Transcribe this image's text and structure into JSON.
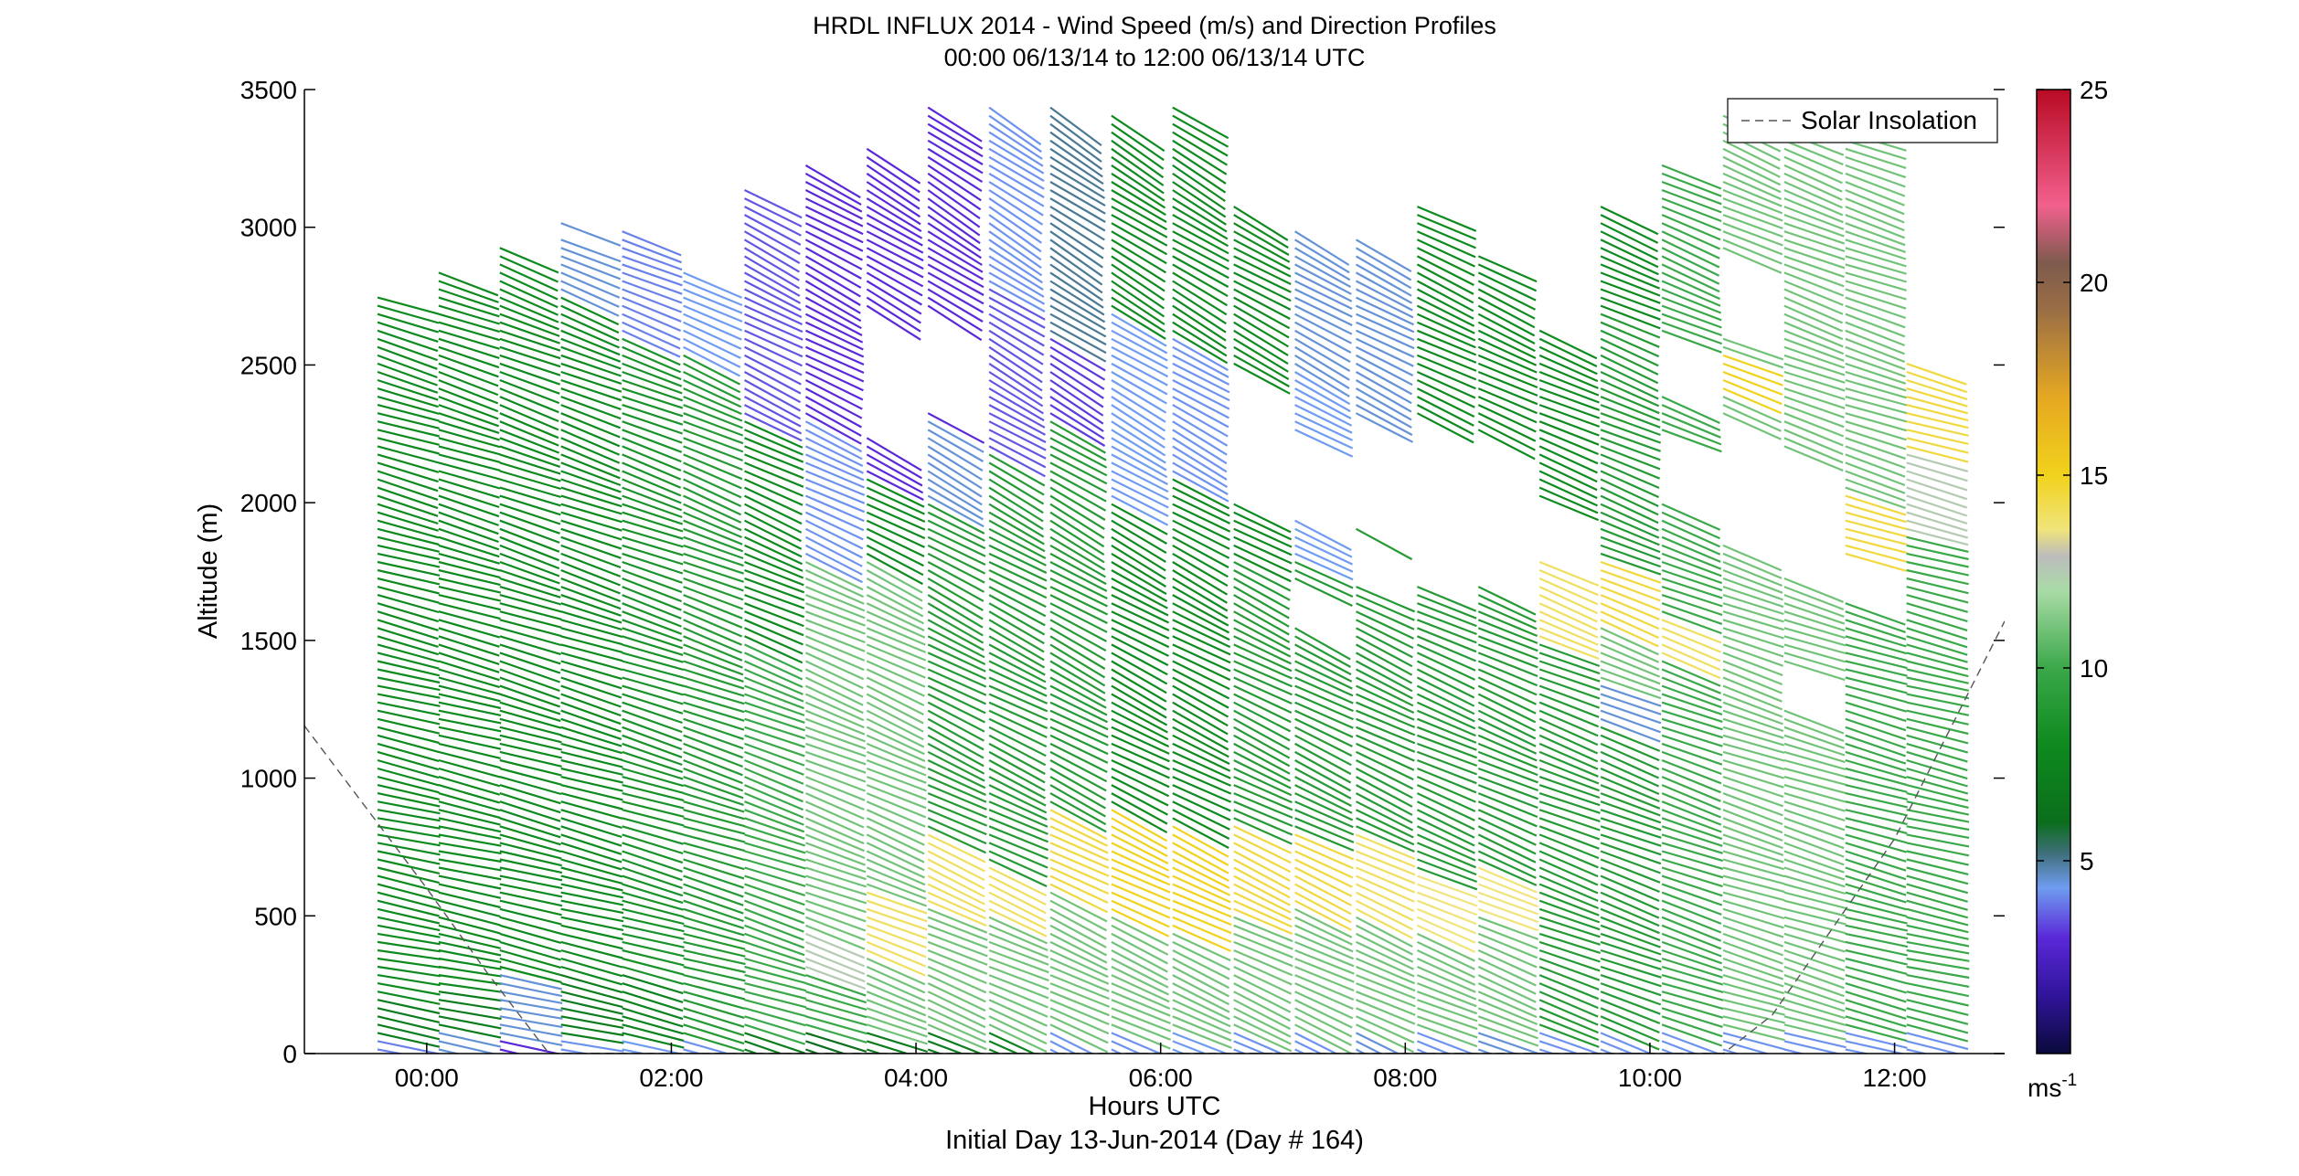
{
  "chart_data": {
    "type": "wind_barb_profile",
    "title": "HRDL INFLUX 2014 - Wind Speed (m/s) and Direction Profiles",
    "subtitle": "00:00 06/13/14 to 12:00 06/13/14  UTC",
    "xlabel": "Hours UTC",
    "xlabel2": "Initial Day 13-Jun-2014 (Day # 164)",
    "ylabel": "Altitude (m)",
    "x_range_hours": [
      -1.0,
      12.9
    ],
    "ylim": [
      0,
      3500
    ],
    "x_ticks": [
      {
        "hour": 0,
        "label": "00:00"
      },
      {
        "hour": 2,
        "label": "02:00"
      },
      {
        "hour": 4,
        "label": "04:00"
      },
      {
        "hour": 6,
        "label": "06:00"
      },
      {
        "hour": 8,
        "label": "08:00"
      },
      {
        "hour": 10,
        "label": "10:00"
      },
      {
        "hour": 12,
        "label": "12:00"
      }
    ],
    "y_ticks": [
      {
        "value": 0,
        "label": "0"
      },
      {
        "value": 500,
        "label": "500"
      },
      {
        "value": 1000,
        "label": "1000"
      },
      {
        "value": 1500,
        "label": "1500"
      },
      {
        "value": 2000,
        "label": "2000"
      },
      {
        "value": 2500,
        "label": "2500"
      },
      {
        "value": 3000,
        "label": "3000"
      },
      {
        "value": 3500,
        "label": "3500"
      }
    ],
    "colorbar": {
      "min": 0,
      "max": 25,
      "unit_label": "ms",
      "unit_exponent": "-1",
      "ticks": [
        {
          "value": 5,
          "label": "5"
        },
        {
          "value": 10,
          "label": "10"
        },
        {
          "value": 15,
          "label": "15"
        },
        {
          "value": 20,
          "label": "20"
        },
        {
          "value": 25,
          "label": "25"
        }
      ],
      "stops": [
        {
          "value": 0,
          "color": "#0a0a3c"
        },
        {
          "value": 1.5,
          "color": "#30149a"
        },
        {
          "value": 3,
          "color": "#5a28d8"
        },
        {
          "value": 4.3,
          "color": "#6f9cf0"
        },
        {
          "value": 5.2,
          "color": "#3f6f7a"
        },
        {
          "value": 6,
          "color": "#0b6e1c"
        },
        {
          "value": 8,
          "color": "#0e8a1e"
        },
        {
          "value": 10,
          "color": "#3ba84a"
        },
        {
          "value": 12,
          "color": "#a9dba6"
        },
        {
          "value": 12.9,
          "color": "#bcbcbc"
        },
        {
          "value": 13.6,
          "color": "#f0e47a"
        },
        {
          "value": 15,
          "color": "#f1d21c"
        },
        {
          "value": 17,
          "color": "#e6a822"
        },
        {
          "value": 19.3,
          "color": "#9a6e45"
        },
        {
          "value": 20.5,
          "color": "#7d5a4d"
        },
        {
          "value": 22,
          "color": "#f2608d"
        },
        {
          "value": 25,
          "color": "#b80a24"
        }
      ]
    },
    "legend": {
      "position": "top-right",
      "entries": [
        {
          "name": "Solar Insolation",
          "style": "dashed",
          "color": "#555555"
        }
      ]
    },
    "series": [
      {
        "name": "Solar Insolation",
        "points": [
          {
            "hour": -1.0,
            "altitude": 1190
          },
          {
            "hour": 0.0,
            "altitude": 600
          },
          {
            "hour": 0.5,
            "altitude": 290
          },
          {
            "hour": 1.0,
            "altitude": 0
          },
          {
            "hour": 10.6,
            "altitude": 0
          },
          {
            "hour": 11.0,
            "altitude": 140
          },
          {
            "hour": 12.0,
            "altitude": 780
          },
          {
            "hour": 12.9,
            "altitude": 1570
          }
        ]
      }
    ],
    "profiles": [
      {
        "hour": -0.35,
        "top": 2760,
        "segments": [
          [
            0,
            60,
            4
          ],
          [
            60,
            200,
            7
          ],
          [
            200,
            2760,
            8
          ]
        ],
        "gaps": [],
        "dir_low": 10,
        "dir_high": 20
      },
      {
        "hour": 0.15,
        "top": 2840,
        "segments": [
          [
            0,
            80,
            4.5
          ],
          [
            80,
            250,
            7
          ],
          [
            250,
            2840,
            8
          ]
        ],
        "gaps": [],
        "dir_low": 10,
        "dir_high": 22
      },
      {
        "hour": 0.65,
        "top": 2930,
        "segments": [
          [
            0,
            50,
            3
          ],
          [
            50,
            300,
            4.5
          ],
          [
            300,
            2930,
            8
          ]
        ],
        "gaps": [],
        "dir_low": 12,
        "dir_high": 24
      },
      {
        "hour": 1.15,
        "top": 3040,
        "segments": [
          [
            0,
            60,
            4.2
          ],
          [
            60,
            300,
            7
          ],
          [
            300,
            2750,
            8
          ],
          [
            2750,
            3040,
            4.5
          ]
        ],
        "gaps": [
          [
            2960,
            3000
          ]
        ],
        "dir_low": 12,
        "dir_high": 25
      },
      {
        "hour": 1.65,
        "top": 3010,
        "segments": [
          [
            0,
            60,
            4.3
          ],
          [
            60,
            300,
            7.5
          ],
          [
            300,
            2600,
            8.5
          ],
          [
            2600,
            3010,
            4
          ]
        ],
        "gaps": [],
        "dir_low": 14,
        "dir_high": 24
      },
      {
        "hour": 2.15,
        "top": 2850,
        "segments": [
          [
            0,
            60,
            4.2
          ],
          [
            60,
            2550,
            9
          ],
          [
            2550,
            2850,
            4.3
          ]
        ],
        "gaps": [],
        "dir_low": 14,
        "dir_high": 28
      },
      {
        "hour": 2.65,
        "top": 3150,
        "segments": [
          [
            0,
            80,
            7
          ],
          [
            80,
            1500,
            10
          ],
          [
            1500,
            2300,
            8
          ],
          [
            2300,
            3150,
            3.5
          ]
        ],
        "gaps": [],
        "dir_low": 16,
        "dir_high": 30
      },
      {
        "hour": 3.15,
        "top": 3250,
        "segments": [
          [
            0,
            80,
            6
          ],
          [
            80,
            300,
            10
          ],
          [
            300,
            450,
            12.5
          ],
          [
            450,
            1800,
            11
          ],
          [
            1800,
            2300,
            4.2
          ],
          [
            2300,
            3250,
            3
          ]
        ],
        "gaps": [],
        "dir_low": 18,
        "dir_high": 30
      },
      {
        "hour": 3.65,
        "top": 3300,
        "segments": [
          [
            0,
            100,
            7
          ],
          [
            100,
            350,
            11
          ],
          [
            350,
            600,
            14
          ],
          [
            600,
            1800,
            11
          ],
          [
            1800,
            2100,
            8
          ],
          [
            2100,
            3300,
            3
          ]
        ],
        "gaps": [
          [
            2250,
            2700
          ]
        ],
        "dir_low": 20,
        "dir_high": 32
      },
      {
        "hour": 4.15,
        "top": 3460,
        "segments": [
          [
            0,
            100,
            7
          ],
          [
            100,
            550,
            11
          ],
          [
            550,
            800,
            14
          ],
          [
            800,
            2000,
            9
          ],
          [
            2000,
            2300,
            4.5
          ],
          [
            2300,
            3460,
            3
          ]
        ],
        "gaps": [
          [
            2350,
            2700
          ]
        ],
        "dir_low": 22,
        "dir_high": 34
      },
      {
        "hour": 4.65,
        "top": 3450,
        "segments": [
          [
            0,
            100,
            7.5
          ],
          [
            100,
            500,
            11
          ],
          [
            500,
            700,
            14
          ],
          [
            700,
            2200,
            9
          ],
          [
            2200,
            2800,
            3.5
          ],
          [
            2800,
            3450,
            4.2
          ]
        ],
        "gaps": [],
        "dir_low": 22,
        "dir_high": 34
      },
      {
        "hour": 5.15,
        "top": 3460,
        "segments": [
          [
            0,
            100,
            4.2
          ],
          [
            100,
            600,
            11
          ],
          [
            600,
            900,
            14.5
          ],
          [
            900,
            2300,
            9
          ],
          [
            2300,
            2600,
            3.2
          ],
          [
            2600,
            3460,
            5
          ]
        ],
        "gaps": [],
        "dir_low": 24,
        "dir_high": 34
      },
      {
        "hour": 5.65,
        "top": 3420,
        "segments": [
          [
            0,
            100,
            4.2
          ],
          [
            100,
            500,
            11
          ],
          [
            500,
            900,
            15
          ],
          [
            900,
            2000,
            8
          ],
          [
            2000,
            2700,
            4.3
          ],
          [
            2700,
            3420,
            8
          ]
        ],
        "gaps": [],
        "dir_low": 24,
        "dir_high": 33
      },
      {
        "hour": 6.15,
        "top": 3460,
        "segments": [
          [
            0,
            100,
            4.3
          ],
          [
            100,
            450,
            11
          ],
          [
            450,
            850,
            15
          ],
          [
            850,
            2100,
            8
          ],
          [
            2100,
            2600,
            4.2
          ],
          [
            2600,
            3460,
            8
          ]
        ],
        "gaps": [],
        "dir_low": 24,
        "dir_high": 32
      },
      {
        "hour": 6.65,
        "top": 3100,
        "segments": [
          [
            0,
            100,
            4.2
          ],
          [
            100,
            500,
            11
          ],
          [
            500,
            850,
            14.5
          ],
          [
            850,
            1800,
            9
          ],
          [
            1800,
            3100,
            8
          ]
        ],
        "gaps": [
          [
            2000,
            2500
          ]
        ],
        "dir_low": 24,
        "dir_high": 30
      },
      {
        "hour": 7.15,
        "top": 3000,
        "segments": [
          [
            0,
            100,
            4.2
          ],
          [
            100,
            550,
            11
          ],
          [
            550,
            800,
            14.5
          ],
          [
            800,
            1800,
            9
          ],
          [
            1800,
            2500,
            4.3
          ],
          [
            2500,
            3000,
            4.5
          ]
        ],
        "gaps": [
          [
            1550,
            1700
          ],
          [
            1950,
            2250
          ]
        ],
        "dir_low": 24,
        "dir_high": 30
      },
      {
        "hour": 7.65,
        "top": 2960,
        "segments": [
          [
            0,
            100,
            4.5
          ],
          [
            100,
            500,
            11
          ],
          [
            500,
            800,
            14
          ],
          [
            800,
            2300,
            9
          ],
          [
            2300,
            2960,
            4.5
          ]
        ],
        "gaps": [
          [
            1700,
            1900
          ],
          [
            1930,
            2300
          ]
        ],
        "dir_low": 24,
        "dir_high": 28
      },
      {
        "hour": 8.15,
        "top": 3090,
        "segments": [
          [
            0,
            100,
            4.2
          ],
          [
            100,
            450,
            11
          ],
          [
            450,
            650,
            13.6
          ],
          [
            650,
            1700,
            9
          ],
          [
            1700,
            3090,
            8
          ]
        ],
        "gaps": [
          [
            1700,
            2300
          ]
        ],
        "dir_low": 22,
        "dir_high": 26
      },
      {
        "hour": 8.65,
        "top": 2900,
        "segments": [
          [
            0,
            100,
            4.5
          ],
          [
            100,
            500,
            11
          ],
          [
            500,
            700,
            13.6
          ],
          [
            700,
            1700,
            9
          ],
          [
            1700,
            2900,
            8
          ]
        ],
        "gaps": [
          [
            1700,
            2250
          ]
        ],
        "dir_low": 22,
        "dir_high": 26
      },
      {
        "hour": 9.15,
        "top": 2650,
        "segments": [
          [
            0,
            100,
            4.2
          ],
          [
            100,
            1500,
            9
          ],
          [
            1500,
            1800,
            14
          ],
          [
            1800,
            2650,
            8
          ]
        ],
        "gaps": [
          [
            1800,
            2000
          ]
        ],
        "dir_low": 20,
        "dir_high": 24
      },
      {
        "hour": 9.65,
        "top": 3100,
        "segments": [
          [
            0,
            100,
            4.2
          ],
          [
            100,
            1200,
            9
          ],
          [
            1200,
            1350,
            4.5
          ],
          [
            1350,
            1550,
            11
          ],
          [
            1550,
            1800,
            14.5
          ],
          [
            1800,
            2700,
            9
          ],
          [
            2700,
            3100,
            8
          ]
        ],
        "gaps": [],
        "dir_low": 20,
        "dir_high": 24
      },
      {
        "hour": 10.15,
        "top": 3250,
        "segments": [
          [
            0,
            100,
            4.2
          ],
          [
            100,
            1450,
            10
          ],
          [
            1450,
            1600,
            14
          ],
          [
            1600,
            3250,
            10
          ]
        ],
        "gaps": [
          [
            2000,
            2250
          ],
          [
            2400,
            2600
          ]
        ],
        "dir_low": 18,
        "dir_high": 24
      },
      {
        "hour": 10.65,
        "top": 3420,
        "segments": [
          [
            0,
            100,
            4.2
          ],
          [
            100,
            2400,
            11
          ],
          [
            2400,
            2550,
            15
          ],
          [
            2550,
            3420,
            11
          ]
        ],
        "gaps": [
          [
            1850,
            2300
          ],
          [
            2600,
            2900
          ]
        ],
        "dir_low": 16,
        "dir_high": 24
      },
      {
        "hour": 11.15,
        "top": 3350,
        "segments": [
          [
            0,
            100,
            4.2
          ],
          [
            100,
            3350,
            11
          ]
        ],
        "gaps": [
          [
            1250,
            1420
          ],
          [
            1750,
            2200
          ]
        ],
        "dir_low": 16,
        "dir_high": 22
      },
      {
        "hour": 11.65,
        "top": 3480,
        "segments": [
          [
            0,
            100,
            4.2
          ],
          [
            100,
            1800,
            10
          ],
          [
            1800,
            2050,
            14.5
          ],
          [
            2050,
            3480,
            11
          ]
        ],
        "gaps": [
          [
            1650,
            1800
          ]
        ],
        "dir_low": 14,
        "dir_high": 20
      },
      {
        "hour": 12.15,
        "top": 2520,
        "segments": [
          [
            0,
            100,
            4.2
          ],
          [
            100,
            1900,
            10
          ],
          [
            1900,
            2200,
            12.5
          ],
          [
            2200,
            2520,
            14.5
          ]
        ],
        "gaps": [],
        "dir_low": 12,
        "dir_high": 18
      }
    ]
  }
}
